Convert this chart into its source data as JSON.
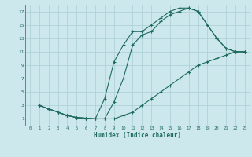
{
  "xlabel": "Humidex (Indice chaleur)",
  "bg_color": "#cde8ec",
  "grid_color": "#aacdd4",
  "line_color": "#1e6b5e",
  "xlim": [
    -0.5,
    23.5
  ],
  "ylim": [
    0,
    18
  ],
  "xticks": [
    0,
    1,
    2,
    3,
    4,
    5,
    6,
    7,
    8,
    9,
    10,
    11,
    12,
    13,
    14,
    15,
    16,
    17,
    18,
    19,
    20,
    21,
    22,
    23
  ],
  "yticks": [
    1,
    3,
    5,
    7,
    9,
    11,
    13,
    15,
    17
  ],
  "line1_x": [
    1,
    2,
    3,
    4,
    5,
    6,
    7,
    8,
    9,
    10,
    11,
    12,
    13,
    14,
    15,
    16,
    17,
    18,
    19,
    20,
    21,
    22,
    23
  ],
  "line1_y": [
    3,
    2.5,
    2,
    1.5,
    1.2,
    1.1,
    1.0,
    1.0,
    1.0,
    1.5,
    2.0,
    3.0,
    4.0,
    5.0,
    6.0,
    7.0,
    8.0,
    9.0,
    9.5,
    10.0,
    10.5,
    11.0,
    11.0
  ],
  "line2_x": [
    1,
    2,
    3,
    4,
    5,
    6,
    7,
    8,
    9,
    10,
    11,
    12,
    13,
    14,
    15,
    16,
    17,
    18,
    19,
    20,
    21,
    22,
    23
  ],
  "line2_y": [
    3,
    2.5,
    2,
    1.5,
    1.2,
    1.1,
    1.0,
    1.0,
    3.5,
    7.0,
    12.0,
    13.5,
    14.0,
    15.5,
    16.5,
    17.0,
    17.5,
    17.0,
    15.0,
    13.0,
    11.5,
    11.0,
    11.0
  ],
  "line3_x": [
    1,
    2,
    3,
    4,
    5,
    6,
    7,
    8,
    9,
    10,
    11,
    12,
    13,
    14,
    15,
    16,
    17,
    18,
    19,
    20,
    21,
    22,
    23
  ],
  "line3_y": [
    3,
    2.5,
    2,
    1.5,
    1.2,
    1.1,
    1.0,
    4.0,
    9.5,
    12.0,
    14.0,
    14.0,
    15.0,
    16.0,
    17.0,
    17.5,
    17.5,
    17.0,
    15.0,
    13.0,
    11.5,
    11.0,
    11.0
  ]
}
